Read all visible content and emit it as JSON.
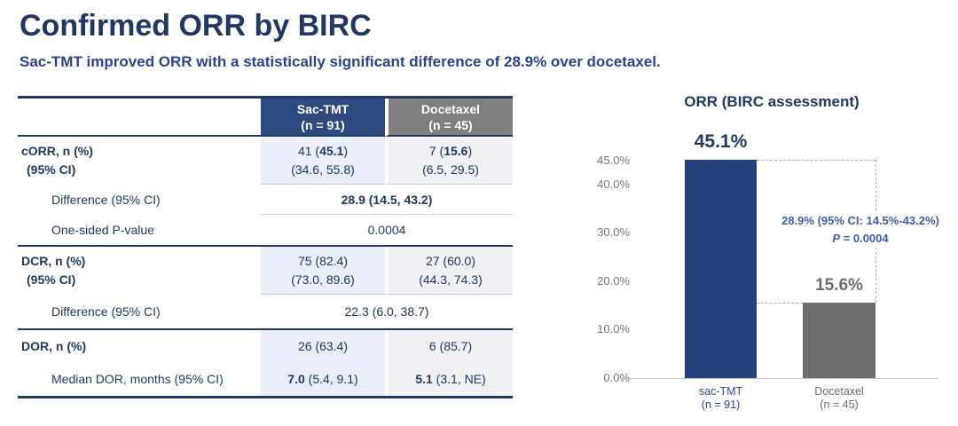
{
  "page": {
    "title": "Confirmed ORR by BIRC",
    "subtitle": "Sac-TMT improved ORR with a statistically significant difference of 28.9% over docetaxel."
  },
  "colors": {
    "title_navy": "#1F3864",
    "subtitle_blue": "#2C4390",
    "table_header_blue": "#2E4A80",
    "table_header_gray": "#7F7F7F",
    "column_blue_shade": "#E9EEF8",
    "column_gray_shade": "#F0F1F4",
    "bar_blue": "#27407E",
    "bar_gray": "#6E6E6E",
    "annotation_blue": "#3B5EA8"
  },
  "table": {
    "header": {
      "col1": "",
      "col2": {
        "line1": "Sac-TMT",
        "line2": "(n = 91)"
      },
      "col3": {
        "line1": "Docetaxel",
        "line2": "(n = 45)"
      }
    },
    "rows": [
      {
        "kind": "data",
        "label_lines": [
          {
            "text": "cORR, n (%)",
            "bold": true,
            "indent": 0
          },
          {
            "text": "(95% CI)",
            "bold": true,
            "indent": 1
          }
        ],
        "cells": [
          [
            [
              {
                "t": "41 ("
              },
              {
                "t": "45.1",
                "b": true
              },
              {
                "t": ")"
              }
            ],
            [
              {
                "t": "(34.6, 55.8)"
              }
            ]
          ],
          [
            [
              {
                "t": "7 ("
              },
              {
                "t": "15.6",
                "b": true
              },
              {
                "t": ")"
              }
            ],
            [
              {
                "t": "(6.5, 29.5)"
              }
            ]
          ]
        ],
        "divider": "thin"
      },
      {
        "kind": "span",
        "label_lines": [
          {
            "text": "Difference (95% CI)",
            "bold": false,
            "indent": 2
          }
        ],
        "span_segments": [
          {
            "t": "28.9 (14.5, 43.2)",
            "b": true
          }
        ],
        "divider": "thin"
      },
      {
        "kind": "span",
        "label_lines": [
          {
            "text": "One-sided P-value",
            "bold": false,
            "indent": 2
          }
        ],
        "span_segments": [
          {
            "t": "0.0004"
          }
        ],
        "divider": "navy"
      },
      {
        "kind": "data",
        "label_lines": [
          {
            "text": "DCR, n (%)",
            "bold": true,
            "indent": 0
          },
          {
            "text": "(95% CI)",
            "bold": true,
            "indent": 1
          }
        ],
        "cells": [
          [
            [
              {
                "t": "75 (82.4)"
              }
            ],
            [
              {
                "t": "(73.0, 89.6)"
              }
            ]
          ],
          [
            [
              {
                "t": "27 (60.0)"
              }
            ],
            [
              {
                "t": "(44.3, 74.3)"
              }
            ]
          ]
        ],
        "divider": "thin"
      },
      {
        "kind": "span",
        "label_lines": [
          {
            "text": "Difference (95% CI)",
            "bold": false,
            "indent": 2
          }
        ],
        "span_segments": [
          {
            "t": "22.3 (6.0, 38.7)"
          }
        ],
        "divider": "navy"
      },
      {
        "kind": "data",
        "label_lines": [
          {
            "text": "DOR, n (%)",
            "bold": true,
            "indent": 0
          }
        ],
        "cells": [
          [
            [
              {
                "t": "26 (63.4)"
              }
            ]
          ],
          [
            [
              {
                "t": "6 (85.7)"
              }
            ]
          ]
        ],
        "divider": "none"
      },
      {
        "kind": "data",
        "label_lines": [
          {
            "text": "Median DOR, months (95% CI)",
            "bold": false,
            "indent": 2
          }
        ],
        "cells": [
          [
            [
              {
                "t": "7.0",
                "b": true
              },
              {
                "t": " (5.4, 9.1)"
              }
            ]
          ],
          [
            [
              {
                "t": "5.1",
                "b": true
              },
              {
                "t": " (3.1, NE)"
              }
            ]
          ]
        ],
        "divider": "none"
      }
    ]
  },
  "chart_data": {
    "type": "bar",
    "title": "ORR (BIRC assessment)",
    "categories": [
      "sac-TMT (n = 91)",
      "Docetaxel (n = 45)"
    ],
    "x_label_lines": [
      [
        "sac-TMT",
        "(n = 91)"
      ],
      [
        "Docetaxel",
        "(n = 45)"
      ]
    ],
    "x_label_colors": [
      "#2E4596",
      "#6E6E6E"
    ],
    "values": [
      45.1,
      15.6
    ],
    "bar_labels": [
      "45.1%",
      "15.6%"
    ],
    "bar_colors": [
      "#27407E",
      "#6E6E6E"
    ],
    "bar_label_colors": [
      "#1F3864",
      "#6E6E6E"
    ],
    "xlabel": "",
    "ylabel": "",
    "ylim": [
      0,
      45
    ],
    "yticks": [
      "45.0%",
      "40.0%",
      "30.0%",
      "20.0%",
      "10.0%",
      "0.0%"
    ],
    "ytick_values": [
      45,
      40,
      30,
      20,
      10,
      0
    ],
    "grid": false,
    "legend": "none",
    "annotation": [
      "28.9% (95% CI: 14.5%-43.2%)",
      "P = 0.0004"
    ]
  }
}
